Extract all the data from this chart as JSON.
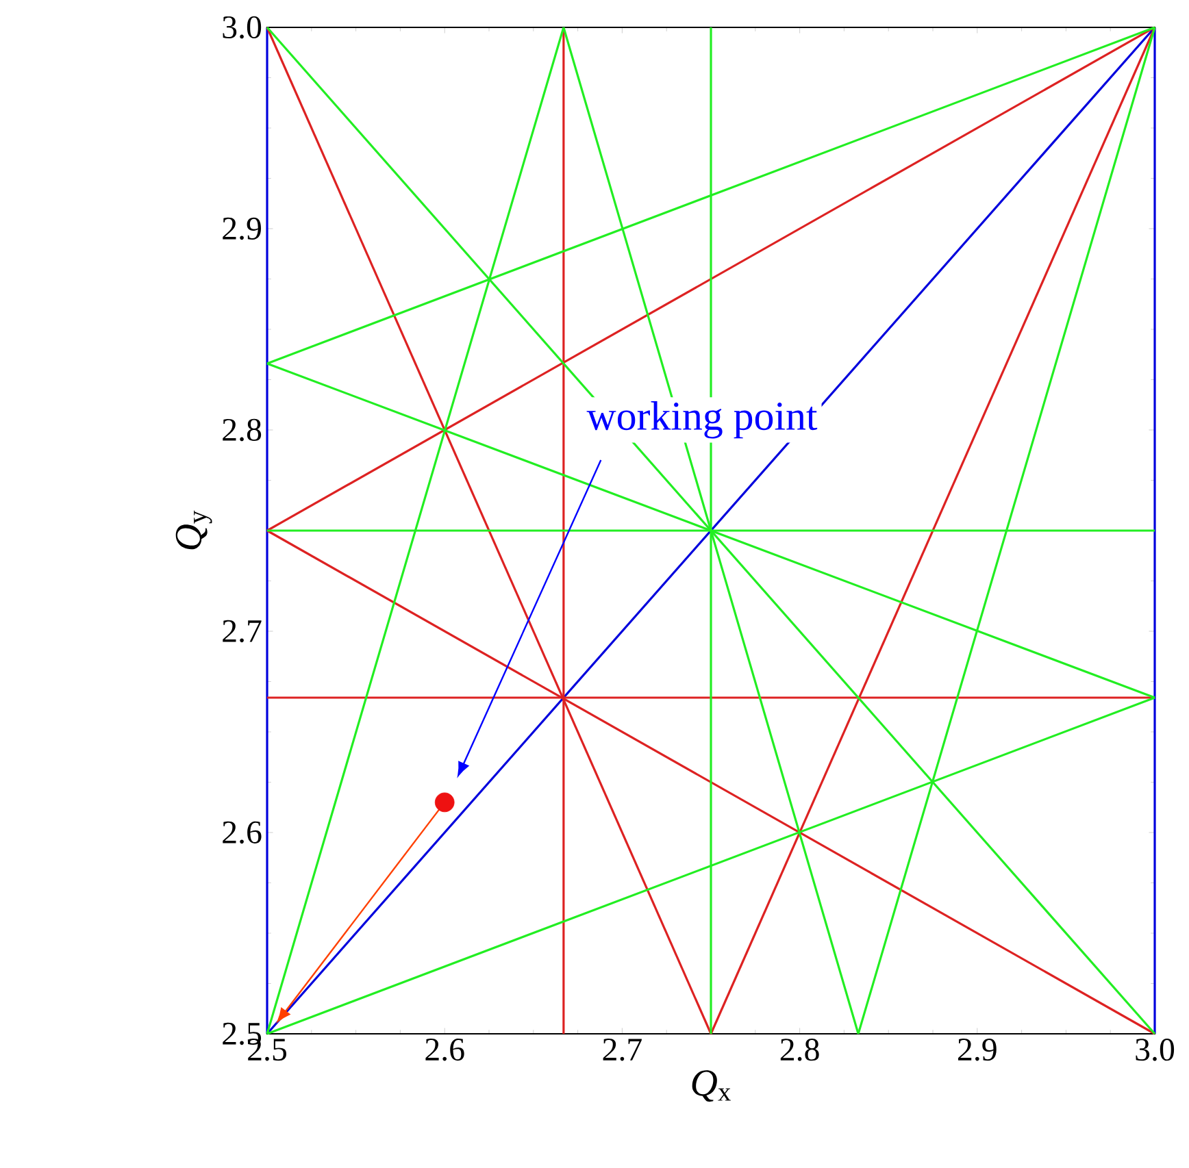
{
  "chart_data": {
    "type": "line",
    "xlabel": "*Q*$_{x}$",
    "ylabel": "*Q*$_{y}$",
    "xlim": [
      2.5,
      3.0
    ],
    "ylim": [
      2.5,
      3.0
    ],
    "xticks": [
      2.5,
      2.6,
      2.7,
      2.8,
      2.9,
      {
        "value": 3.0,
        "label": "3.0"
      }
    ],
    "yticks": [
      2.5,
      2.6,
      2.7,
      2.8,
      2.9,
      {
        "value": 3.0,
        "label": "3.0"
      }
    ],
    "series": [
      {
        "color": "#0000dd",
        "x": [
          2.5,
          3.0
        ],
        "values": [
          2.5,
          3.0
        ]
      },
      {
        "color": "#0000dd",
        "x": [
          2.5,
          2.5
        ],
        "values": [
          2.5,
          3.0
        ]
      },
      {
        "color": "#0000dd",
        "x": [
          3.0,
          3.0
        ],
        "values": [
          2.5,
          3.0
        ]
      },
      {
        "color": "#dd2222",
        "x": [
          2.667,
          2.667
        ],
        "values": [
          2.5,
          3.0
        ]
      },
      {
        "color": "#dd2222",
        "x": [
          2.5,
          3.0
        ],
        "values": [
          2.667,
          2.667
        ]
      },
      {
        "color": "#dd2222",
        "x": [
          2.5,
          2.75
        ],
        "values": [
          3.0,
          2.5
        ]
      },
      {
        "color": "#dd2222",
        "x": [
          2.5,
          3.0
        ],
        "values": [
          2.75,
          2.5
        ]
      },
      {
        "color": "#dd2222",
        "x": [
          2.5,
          3.0
        ],
        "values": [
          2.75,
          3.0
        ]
      },
      {
        "color": "#dd2222",
        "x": [
          2.75,
          3.0
        ],
        "values": [
          2.5,
          3.0
        ]
      },
      {
        "color": "#22ee22",
        "x": [
          2.75,
          2.75
        ],
        "values": [
          2.5,
          3.0
        ]
      },
      {
        "color": "#22ee22",
        "x": [
          2.5,
          3.0
        ],
        "values": [
          2.75,
          2.75
        ]
      },
      {
        "color": "#22ee22",
        "x": [
          2.5,
          3.0
        ],
        "values": [
          3.0,
          2.5
        ]
      },
      {
        "color": "#22ee22",
        "x": [
          2.5,
          3.0
        ],
        "values": [
          2.833,
          2.667
        ]
      },
      {
        "color": "#22ee22",
        "x": [
          2.667,
          2.833
        ],
        "values": [
          3.0,
          2.5
        ]
      },
      {
        "color": "#22ee22",
        "x": [
          2.5,
          2.667
        ],
        "values": [
          2.5,
          3.0
        ]
      },
      {
        "color": "#22ee22",
        "x": [
          2.5,
          3.0
        ],
        "values": [
          2.5,
          2.667
        ]
      },
      {
        "color": "#22ee22",
        "x": [
          2.5,
          3.0
        ],
        "values": [
          2.833,
          3.0
        ]
      },
      {
        "color": "#22ee22",
        "x": [
          2.833,
          3.0
        ],
        "values": [
          2.5,
          3.0
        ]
      },
      {
        "type": "scatter",
        "marker": "circle",
        "color": "#ee1111",
        "x": [
          2.6
        ],
        "values": [
          2.615
        ]
      }
    ],
    "annotations": [
      "working point"
    ]
  }
}
